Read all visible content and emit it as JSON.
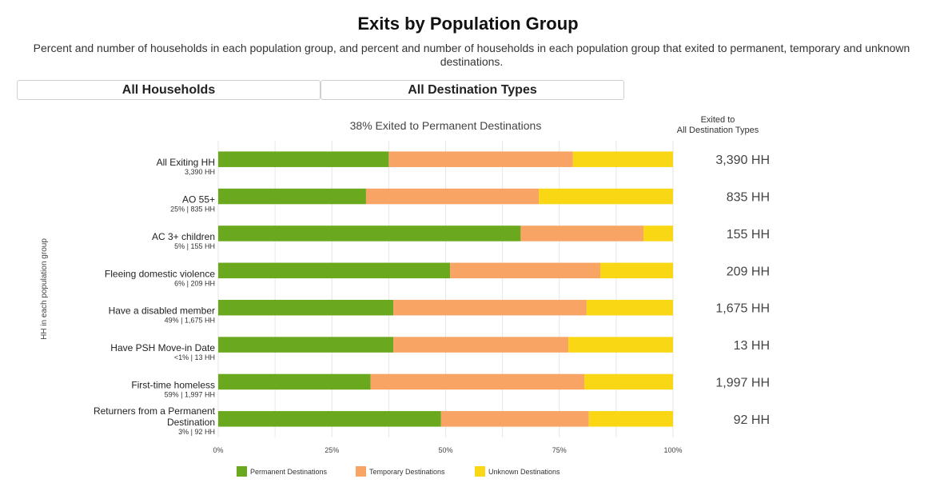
{
  "header": {
    "title": "Exits by Population Group",
    "subtitle": "Percent and number of households in each population group, and percent and number of households in each population group that exited to permanent, temporary and unknown destinations."
  },
  "selectors": {
    "households": "All Households",
    "destination": "All Destination Types"
  },
  "right_header": {
    "line1": "Exited to",
    "line2": "All Destination Types"
  },
  "colors": {
    "permanent": "#6aa81d",
    "temporary": "#f8a465",
    "unknown": "#f9d714",
    "grid": "#e6e6e6"
  },
  "chart_data": {
    "type": "bar",
    "orientation": "horizontal",
    "stacked": true,
    "title": "38% Exited to Permanent Destinations",
    "ylabel": "HH in each population group",
    "xlim": [
      0,
      100
    ],
    "xticks": [
      "0%",
      "25%",
      "50%",
      "75%",
      "100%"
    ],
    "grid": true,
    "legend_position": "bottom",
    "categories": [
      {
        "label": [
          "All Exiting HH"
        ],
        "sub": "3,390 HH",
        "total": "3,390 HH"
      },
      {
        "label": [
          "AO 55+"
        ],
        "sub": "25% | 835 HH",
        "total": "835 HH"
      },
      {
        "label": [
          "AC 3+ children"
        ],
        "sub": "5% | 155 HH",
        "total": "155 HH"
      },
      {
        "label": [
          "Fleeing domestic violence"
        ],
        "sub": "6% | 209 HH",
        "total": "209 HH"
      },
      {
        "label": [
          "Have a disabled member"
        ],
        "sub": "49% | 1,675 HH",
        "total": "1,675 HH"
      },
      {
        "label": [
          "Have PSH Move-in Date"
        ],
        "sub": "<1% | 13 HH",
        "total": "13 HH"
      },
      {
        "label": [
          "First-time homeless"
        ],
        "sub": "59% | 1,997 HH",
        "total": "1,997 HH"
      },
      {
        "label": [
          "Returners from a Permanent",
          "Destination"
        ],
        "sub": "3% | 92 HH",
        "total": "92 HH"
      }
    ],
    "series": [
      {
        "name": "Permanent Destinations",
        "color_key": "permanent",
        "values": [
          37.5,
          32.5,
          66.5,
          51,
          38.5,
          38.5,
          33.5,
          49
        ]
      },
      {
        "name": "Temporary Destinations",
        "color_key": "temporary",
        "values": [
          40.5,
          38,
          27,
          33,
          42.5,
          38.5,
          47,
          32.5
        ]
      },
      {
        "name": "Unknown Destinations",
        "color_key": "unknown",
        "values": [
          22,
          29.5,
          6.5,
          16,
          19,
          23,
          19.5,
          18.5
        ]
      }
    ]
  }
}
